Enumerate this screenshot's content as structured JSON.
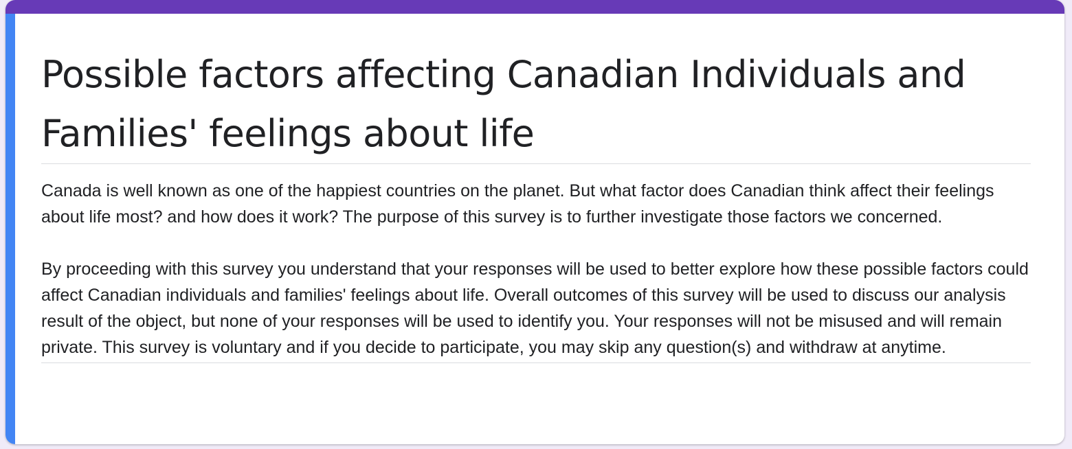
{
  "form": {
    "title": "Possible factors affecting Canadian Individuals and Families' feelings about life",
    "description_paragraphs": [
      "Canada is well known as one of the happiest countries on the planet. But what factor does Canadian think affect their feelings about life most? and how does it work? The purpose of this survey is to further investigate those factors we concerned.",
      "By proceeding with this survey you understand that your responses will be used to better explore how these possible factors could affect Canadian individuals and families' feelings about life. Overall outcomes of this survey will be used to discuss our analysis result of the object,  but none of your responses will be used to identify you. Your responses will not be misused and will remain private. This survey is voluntary and if you decide to participate, you may skip any question(s) and withdraw at anytime."
    ]
  },
  "colors": {
    "theme_accent": "#673ab7",
    "focus_indicator": "#4285f4",
    "text": "#202124",
    "divider": "#dadce0"
  }
}
